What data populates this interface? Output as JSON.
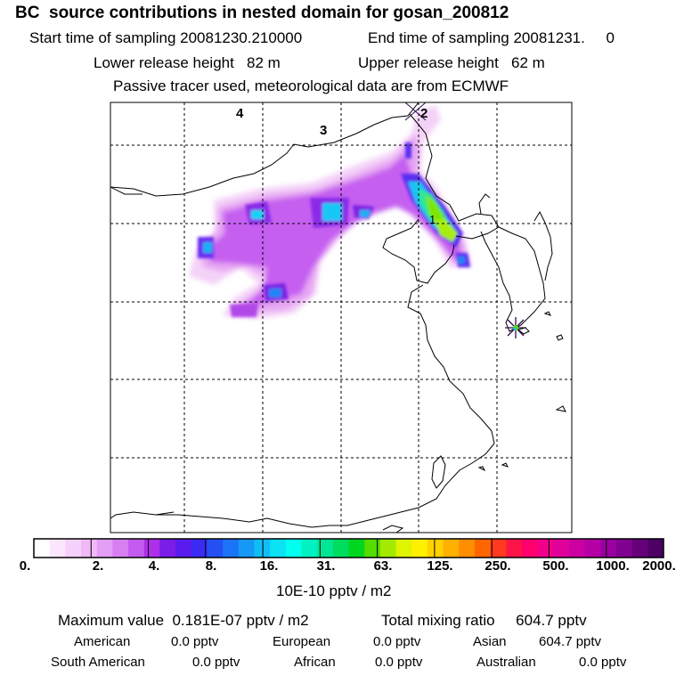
{
  "header": {
    "title": "BC  source contributions in nested domain for gosan_200812",
    "start_label": "Start time of sampling 20081230.210000",
    "end_label": "End time of sampling 20081231.     0",
    "lower_release": "Lower release height   82 m",
    "upper_release": "Upper release height   62 m",
    "tracer_note": "Passive tracer used, meteorological data are from ECMWF"
  },
  "map": {
    "trajectory_markers": [
      "1",
      "2",
      "3",
      "4"
    ],
    "receptor_icon": "star-cross-icon"
  },
  "colorbar": {
    "tick_labels": [
      "0.",
      "2.",
      "4.",
      "8.",
      "16.",
      "31.",
      "63.",
      "125.",
      "250.",
      "500.",
      "1000.",
      "2000."
    ],
    "unit_label": "10E-10 pptv / m2",
    "colors": [
      "#ffffff",
      "#fbe6fd",
      "#f6d1fb",
      "#f0baf8",
      "#e59ef5",
      "#d67ef2",
      "#c35bf0",
      "#ad2fe9",
      "#7b1ce8",
      "#5a1cee",
      "#3b2bf2",
      "#2450f5",
      "#1b74f6",
      "#1698f6",
      "#11bdf6",
      "#0be2f4",
      "#00ffee",
      "#00f2c2",
      "#00e694",
      "#00dc5e",
      "#00d620",
      "#55dd00",
      "#a3ea00",
      "#dff400",
      "#fff000",
      "#ffd200",
      "#ffb000",
      "#ff8e00",
      "#ff6600",
      "#ff3a1e",
      "#ff1448",
      "#ff006e",
      "#f0008a",
      "#e0009a",
      "#cc00a2",
      "#b400a4",
      "#9a00a0",
      "#800090",
      "#660078",
      "#4c0064"
    ]
  },
  "footer": {
    "max_value": "Maximum value  0.181E-07 pptv / m2",
    "total_mixing": "Total mixing ratio     604.7 pptv",
    "american": "American",
    "american_val": "0.0 pptv",
    "european": "European",
    "european_val": "0.0 pptv",
    "asian": "Asian",
    "asian_val": "604.7 pptv",
    "south_american": "South American",
    "south_american_val": "0.0 pptv",
    "african": "African",
    "african_val": "0.0 pptv",
    "australian": "Australian",
    "australian_val": "0.0 pptv"
  }
}
